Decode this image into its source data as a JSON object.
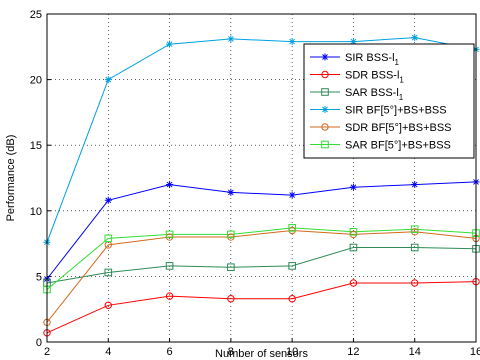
{
  "chart_data": {
    "type": "line",
    "xlabel": "Number of sensors",
    "ylabel": "Performance (dB)",
    "xlim": [
      2,
      16
    ],
    "ylim": [
      0,
      25
    ],
    "x_ticks": [
      "2",
      "4",
      "6",
      "8",
      "10",
      "12",
      "14",
      "16"
    ],
    "y_ticks": [
      "0",
      "5",
      "10",
      "15",
      "20",
      "25"
    ],
    "grid": true,
    "legend_position": "top-right",
    "x": [
      2,
      4,
      6,
      8,
      10,
      12,
      14,
      16
    ],
    "series": [
      {
        "name_main": "SIR BSS-l",
        "name_sub": "1",
        "color": "#0000ff",
        "marker": "star",
        "values": [
          4.8,
          10.8,
          12.0,
          11.4,
          11.2,
          11.8,
          12.0,
          12.2
        ]
      },
      {
        "name_main": "SDR BSS-l",
        "name_sub": "1",
        "color": "#ff0000",
        "marker": "circle",
        "values": [
          0.7,
          2.8,
          3.5,
          3.3,
          3.3,
          4.5,
          4.5,
          4.6
        ]
      },
      {
        "name_main": "SAR BSS-l",
        "name_sub": "1",
        "color": "#2e8b57",
        "marker": "square",
        "values": [
          4.5,
          5.3,
          5.8,
          5.7,
          5.8,
          7.2,
          7.2,
          7.1
        ]
      },
      {
        "name_main": "SIR BF[5°]+BS+BSS",
        "name_sub": "",
        "color": "#00a0e0",
        "marker": "star",
        "values": [
          7.6,
          20.0,
          22.7,
          23.1,
          22.9,
          22.9,
          23.2,
          22.3
        ]
      },
      {
        "name_main": "SDR BF[5°]+BS+BSS",
        "name_sub": "",
        "color": "#d2691e",
        "marker": "circle",
        "values": [
          1.5,
          7.4,
          8.0,
          8.0,
          8.5,
          8.2,
          8.4,
          7.9
        ]
      },
      {
        "name_main": "SAR BF[5°]+BS+BSS",
        "name_sub": "",
        "color": "#33dd33",
        "marker": "square",
        "values": [
          4.0,
          7.9,
          8.2,
          8.2,
          8.7,
          8.4,
          8.6,
          8.3
        ]
      }
    ]
  }
}
